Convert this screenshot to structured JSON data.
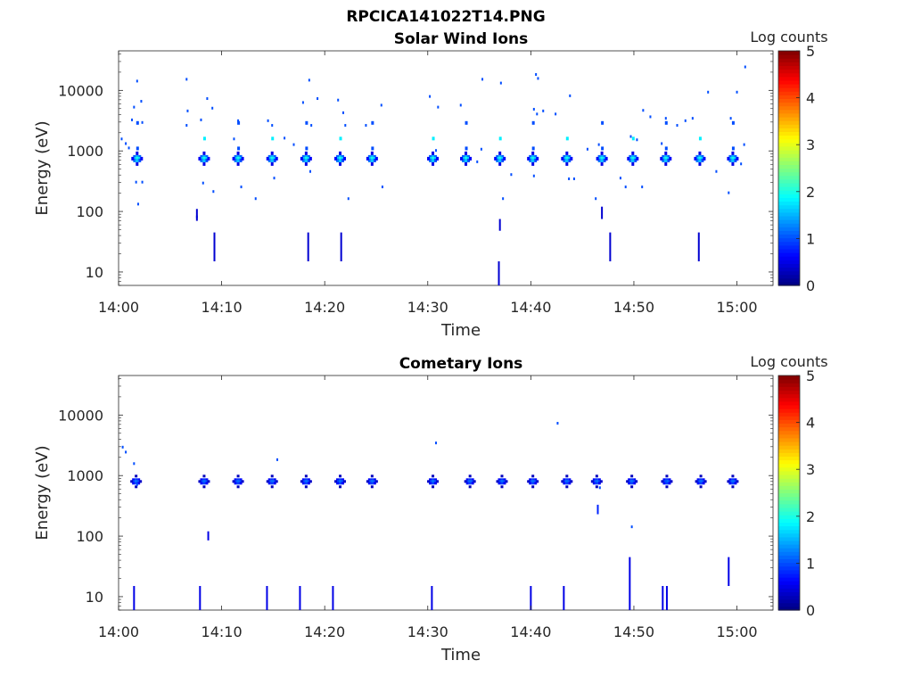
{
  "figure": {
    "title": "RPCICA141022T14.PNG"
  },
  "chart_data": [
    {
      "type": "heatmap",
      "title": "Solar Wind Ions",
      "xlabel": "Time",
      "ylabel": "Energy (eV)",
      "y_scale": "log",
      "ylim": [
        6,
        45000
      ],
      "xlim_minutes": [
        0,
        63.5
      ],
      "x_ticks": [
        {
          "minute": 0,
          "label": "14:00"
        },
        {
          "minute": 10,
          "label": "14:10"
        },
        {
          "minute": 20,
          "label": "14:20"
        },
        {
          "minute": 30,
          "label": "14:30"
        },
        {
          "minute": 40,
          "label": "14:40"
        },
        {
          "minute": 50,
          "label": "14:50"
        },
        {
          "minute": 60,
          "label": "15:00"
        }
      ],
      "y_ticks": [
        {
          "value": 10,
          "label": "10"
        },
        {
          "value": 100,
          "label": "100"
        },
        {
          "value": 1000,
          "label": "1000"
        },
        {
          "value": 10000,
          "label": "10000"
        }
      ],
      "colorbar": {
        "label": "Log counts",
        "min": 0,
        "max": 5,
        "ticks": [
          "0",
          "1",
          "2",
          "3",
          "4",
          "5"
        ]
      },
      "grid": false,
      "clusters_minute": [
        1.8,
        8.3,
        11.6,
        14.9,
        18.2,
        21.5,
        24.6,
        30.5,
        33.7,
        37.0,
        40.2,
        43.5,
        46.9,
        49.9,
        53.1,
        56.4,
        59.6
      ],
      "cluster_energy_core": 720,
      "cluster_peak_log_counts": 2.0,
      "points": [
        {
          "t": 0.3,
          "e": 1550,
          "c": 1.0
        },
        {
          "t": 0.7,
          "e": 1300,
          "c": 1.0
        },
        {
          "t": 1.0,
          "e": 1100,
          "c": 1.0
        },
        {
          "t": 1.5,
          "e": 5200,
          "c": 1.0
        },
        {
          "t": 1.8,
          "e": 14000,
          "c": 1.0
        },
        {
          "t": 2.2,
          "e": 6500,
          "c": 1.0
        },
        {
          "t": 1.3,
          "e": 3200,
          "c": 1.0
        },
        {
          "t": 2.3,
          "e": 2900,
          "c": 1.0
        },
        {
          "t": 1.7,
          "e": 300,
          "c": 1.0
        },
        {
          "t": 2.3,
          "e": 300,
          "c": 1.0
        },
        {
          "t": 1.9,
          "e": 130,
          "c": 1.0
        },
        {
          "t": 6.6,
          "e": 15000,
          "c": 1.0
        },
        {
          "t": 6.7,
          "e": 4500,
          "c": 1.0
        },
        {
          "t": 6.6,
          "e": 2600,
          "c": 1.0
        },
        {
          "t": 7.6,
          "e": 80,
          "c": 1.0
        },
        {
          "t": 8.0,
          "e": 3200,
          "c": 1.0
        },
        {
          "t": 8.6,
          "e": 7200,
          "c": 1.0
        },
        {
          "t": 9.1,
          "e": 5000,
          "c": 1.0
        },
        {
          "t": 9.2,
          "e": 210,
          "c": 1.0
        },
        {
          "t": 8.2,
          "e": 290,
          "c": 1.0
        },
        {
          "t": 11.2,
          "e": 1550,
          "c": 1.0
        },
        {
          "t": 11.6,
          "e": 3100,
          "c": 1.0
        },
        {
          "t": 11.9,
          "e": 250,
          "c": 1.0
        },
        {
          "t": 13.3,
          "e": 160,
          "c": 1.0
        },
        {
          "t": 14.5,
          "e": 3100,
          "c": 1.0
        },
        {
          "t": 14.9,
          "e": 2600,
          "c": 1.0
        },
        {
          "t": 15.1,
          "e": 350,
          "c": 1.0
        },
        {
          "t": 16.1,
          "e": 1600,
          "c": 1.0
        },
        {
          "t": 17.0,
          "e": 1250,
          "c": 1.0
        },
        {
          "t": 17.9,
          "e": 6200,
          "c": 1.0
        },
        {
          "t": 18.5,
          "e": 14500,
          "c": 1.0
        },
        {
          "t": 19.3,
          "e": 7200,
          "c": 1.0
        },
        {
          "t": 18.7,
          "e": 2600,
          "c": 1.0
        },
        {
          "t": 18.6,
          "e": 450,
          "c": 1.0
        },
        {
          "t": 21.3,
          "e": 6800,
          "c": 1.0
        },
        {
          "t": 21.8,
          "e": 4200,
          "c": 1.0
        },
        {
          "t": 22.0,
          "e": 2600,
          "c": 1.0
        },
        {
          "t": 22.3,
          "e": 160,
          "c": 1.0
        },
        {
          "t": 24.0,
          "e": 2600,
          "c": 1.0
        },
        {
          "t": 25.5,
          "e": 5600,
          "c": 1.0
        },
        {
          "t": 25.6,
          "e": 250,
          "c": 1.0
        },
        {
          "t": 30.2,
          "e": 7800,
          "c": 1.0
        },
        {
          "t": 31.0,
          "e": 5200,
          "c": 1.0
        },
        {
          "t": 30.8,
          "e": 1000,
          "c": 1.0
        },
        {
          "t": 33.2,
          "e": 5600,
          "c": 1.0
        },
        {
          "t": 34.8,
          "e": 650,
          "c": 1.0
        },
        {
          "t": 35.3,
          "e": 15000,
          "c": 1.0
        },
        {
          "t": 35.2,
          "e": 1050,
          "c": 1.0
        },
        {
          "t": 37.1,
          "e": 13000,
          "c": 1.0
        },
        {
          "t": 38.1,
          "e": 400,
          "c": 1.0
        },
        {
          "t": 37.3,
          "e": 160,
          "c": 1.0
        },
        {
          "t": 40.5,
          "e": 18000,
          "c": 1.0
        },
        {
          "t": 40.7,
          "e": 15500,
          "c": 1.0
        },
        {
          "t": 40.3,
          "e": 4800,
          "c": 1.0
        },
        {
          "t": 41.2,
          "e": 4500,
          "c": 1.0
        },
        {
          "t": 40.6,
          "e": 4000,
          "c": 1.0
        },
        {
          "t": 42.4,
          "e": 4000,
          "c": 1.0
        },
        {
          "t": 43.8,
          "e": 8000,
          "c": 1.0
        },
        {
          "t": 40.3,
          "e": 380,
          "c": 1.0
        },
        {
          "t": 43.7,
          "e": 340,
          "c": 1.0
        },
        {
          "t": 44.2,
          "e": 340,
          "c": 1.0
        },
        {
          "t": 45.5,
          "e": 1050,
          "c": 1.0
        },
        {
          "t": 46.3,
          "e": 160,
          "c": 1.0
        },
        {
          "t": 46.6,
          "e": 1250,
          "c": 1.0
        },
        {
          "t": 48.7,
          "e": 350,
          "c": 1.0
        },
        {
          "t": 49.2,
          "e": 250,
          "c": 1.0
        },
        {
          "t": 49.7,
          "e": 1700,
          "c": 1.0
        },
        {
          "t": 50.3,
          "e": 1500,
          "c": 1.0
        },
        {
          "t": 50.8,
          "e": 250,
          "c": 1.0
        },
        {
          "t": 50.9,
          "e": 4600,
          "c": 1.0
        },
        {
          "t": 51.6,
          "e": 3600,
          "c": 1.0
        },
        {
          "t": 52.7,
          "e": 1300,
          "c": 1.0
        },
        {
          "t": 53.1,
          "e": 3400,
          "c": 1.0
        },
        {
          "t": 54.2,
          "e": 2600,
          "c": 1.0
        },
        {
          "t": 55.0,
          "e": 3100,
          "c": 1.0
        },
        {
          "t": 55.7,
          "e": 3400,
          "c": 1.0
        },
        {
          "t": 57.2,
          "e": 9200,
          "c": 1.0
        },
        {
          "t": 58.0,
          "e": 450,
          "c": 1.0
        },
        {
          "t": 59.2,
          "e": 200,
          "c": 1.0
        },
        {
          "t": 59.4,
          "e": 3400,
          "c": 1.0
        },
        {
          "t": 60.4,
          "e": 600,
          "c": 1.0
        },
        {
          "t": 60.7,
          "e": 1250,
          "c": 1.0
        },
        {
          "t": 60.0,
          "e": 9200,
          "c": 1.0
        },
        {
          "t": 60.8,
          "e": 24000,
          "c": 1.0
        }
      ],
      "vertical_strokes": [
        {
          "t": 9.3,
          "e_low": 15,
          "e_high": 45,
          "c": 0.4
        },
        {
          "t": 18.4,
          "e_low": 15,
          "e_high": 45,
          "c": 0.4
        },
        {
          "t": 21.6,
          "e_low": 15,
          "e_high": 45,
          "c": 0.4
        },
        {
          "t": 36.9,
          "e_low": 6,
          "e_high": 15,
          "c": 0.4
        },
        {
          "t": 37.0,
          "e_low": 48,
          "e_high": 75,
          "c": 0.4
        },
        {
          "t": 47.7,
          "e_low": 15,
          "e_high": 45,
          "c": 0.4
        },
        {
          "t": 46.9,
          "e_low": 75,
          "e_high": 120,
          "c": 0.4
        },
        {
          "t": 56.3,
          "e_low": 15,
          "e_high": 45,
          "c": 0.4
        },
        {
          "t": 7.6,
          "e_low": 70,
          "e_high": 110,
          "c": 0.4
        }
      ]
    },
    {
      "type": "heatmap",
      "title": "Cometary Ions",
      "xlabel": "Time",
      "ylabel": "Energy (eV)",
      "y_scale": "log",
      "ylim": [
        6,
        45000
      ],
      "xlim_minutes": [
        0,
        63.5
      ],
      "x_ticks": [
        {
          "minute": 0,
          "label": "14:00"
        },
        {
          "minute": 10,
          "label": "14:10"
        },
        {
          "minute": 20,
          "label": "14:20"
        },
        {
          "minute": 30,
          "label": "14:30"
        },
        {
          "minute": 40,
          "label": "14:40"
        },
        {
          "minute": 50,
          "label": "14:50"
        },
        {
          "minute": 60,
          "label": "15:00"
        }
      ],
      "y_ticks": [
        {
          "value": 10,
          "label": "10"
        },
        {
          "value": 100,
          "label": "100"
        },
        {
          "value": 1000,
          "label": "1000"
        },
        {
          "value": 10000,
          "label": "10000"
        }
      ],
      "colorbar": {
        "label": "Log counts",
        "min": 0,
        "max": 5,
        "ticks": [
          "0",
          "1",
          "2",
          "3",
          "4",
          "5"
        ]
      },
      "grid": false,
      "clusters_minute": [
        1.7,
        8.3,
        11.6,
        14.9,
        18.2,
        21.5,
        24.6,
        30.5,
        34.1,
        37.2,
        40.2,
        43.5,
        46.4,
        49.8,
        53.2,
        56.5,
        59.6
      ],
      "cluster_energy_core": 760,
      "cluster_peak_log_counts": 1.2,
      "points": [
        {
          "t": 0.4,
          "e": 2900,
          "c": 1.0
        },
        {
          "t": 0.7,
          "e": 2400,
          "c": 1.0
        },
        {
          "t": 1.5,
          "e": 1550,
          "c": 1.0
        },
        {
          "t": 1.8,
          "e": 700,
          "c": 1.0
        },
        {
          "t": 15.4,
          "e": 1800,
          "c": 1.0
        },
        {
          "t": 30.8,
          "e": 3400,
          "c": 1.0
        },
        {
          "t": 42.6,
          "e": 7200,
          "c": 1.0
        },
        {
          "t": 46.7,
          "e": 620,
          "c": 1.0
        },
        {
          "t": 49.8,
          "e": 140,
          "c": 1.0
        },
        {
          "t": 53.1,
          "e": 800,
          "c": 1.0
        }
      ],
      "vertical_strokes": [
        {
          "t": 1.5,
          "e_low": 6,
          "e_high": 15,
          "c": 0.5
        },
        {
          "t": 7.9,
          "e_low": 6,
          "e_high": 15,
          "c": 0.5
        },
        {
          "t": 14.4,
          "e_low": 6,
          "e_high": 15,
          "c": 0.5
        },
        {
          "t": 17.6,
          "e_low": 6,
          "e_high": 15,
          "c": 0.5
        },
        {
          "t": 20.8,
          "e_low": 6,
          "e_high": 15,
          "c": 0.5
        },
        {
          "t": 30.4,
          "e_low": 6,
          "e_high": 15,
          "c": 0.5
        },
        {
          "t": 40.0,
          "e_low": 6,
          "e_high": 15,
          "c": 0.5
        },
        {
          "t": 43.2,
          "e_low": 6,
          "e_high": 15,
          "c": 0.5
        },
        {
          "t": 49.6,
          "e_low": 6,
          "e_high": 45,
          "c": 0.5
        },
        {
          "t": 52.8,
          "e_low": 6,
          "e_high": 15,
          "c": 0.5
        },
        {
          "t": 53.2,
          "e_low": 6,
          "e_high": 15,
          "c": 0.5
        },
        {
          "t": 59.2,
          "e_low": 15,
          "e_high": 45,
          "c": 0.5
        },
        {
          "t": 8.7,
          "e_low": 85,
          "e_high": 120,
          "c": 0.5
        },
        {
          "t": 46.5,
          "e_low": 230,
          "e_high": 330,
          "c": 0.8
        }
      ]
    }
  ]
}
